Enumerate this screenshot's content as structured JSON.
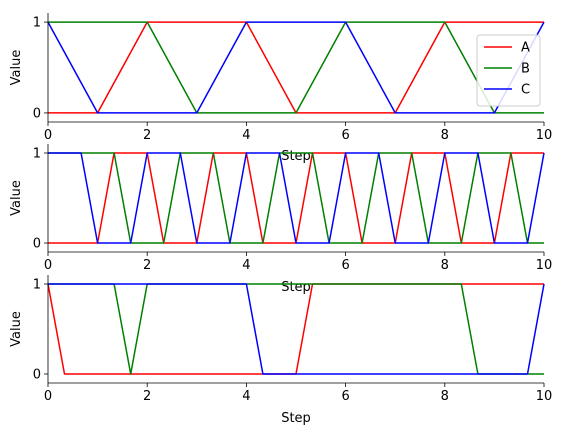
{
  "chart_data": [
    {
      "type": "line",
      "xlabel": "Step",
      "ylabel": "Value",
      "xlim": [
        0,
        10
      ],
      "ylim": [
        -0.1,
        1.1
      ],
      "xticks": [
        0,
        2,
        4,
        6,
        8,
        10
      ],
      "yticks": [
        0,
        1
      ],
      "grid": false,
      "legend": "right",
      "series": [
        {
          "name": "A",
          "color": "#ff0000",
          "x": [
            0,
            1,
            2,
            3,
            4,
            5,
            6,
            7,
            8,
            9,
            10
          ],
          "y": [
            0,
            0,
            1,
            1,
            1,
            0,
            0,
            0,
            1,
            1,
            1
          ]
        },
        {
          "name": "B",
          "color": "#008000",
          "x": [
            0,
            1,
            2,
            3,
            4,
            5,
            6,
            7,
            8,
            9,
            10
          ],
          "y": [
            1,
            1,
            1,
            0,
            0,
            0,
            1,
            1,
            1,
            0,
            0
          ]
        },
        {
          "name": "C",
          "color": "#0000ff",
          "x": [
            0,
            1,
            2,
            3,
            4,
            5,
            6,
            7,
            8,
            9,
            10
          ],
          "y": [
            1,
            0,
            0,
            0,
            1,
            1,
            1,
            0,
            0,
            0,
            1
          ]
        }
      ]
    },
    {
      "type": "line",
      "xlabel": "Step",
      "ylabel": "Value",
      "xlim": [
        0,
        10
      ],
      "ylim": [
        -0.1,
        1.1
      ],
      "xticks": [
        0,
        2,
        4,
        6,
        8,
        10
      ],
      "yticks": [
        0,
        1
      ],
      "grid": false,
      "series": [
        {
          "color": "#ff0000",
          "x": [
            0,
            0.333,
            0.667,
            1,
            1.333,
            1.667,
            2,
            2.333,
            2.667,
            3,
            3.333,
            3.667,
            4,
            4.333,
            4.667,
            5,
            5.333,
            5.667,
            6,
            6.333,
            6.667,
            7,
            7.333,
            7.667,
            8,
            8.333,
            8.667,
            9,
            9.333,
            9.667,
            10
          ],
          "y": [
            0,
            0,
            0,
            0,
            1,
            1,
            1,
            0,
            0,
            0,
            1,
            1,
            1,
            0,
            0,
            0,
            1,
            1,
            1,
            0,
            0,
            0,
            1,
            1,
            1,
            0,
            0,
            0,
            1,
            1,
            1
          ]
        },
        {
          "color": "#008000",
          "x": [
            0,
            0.333,
            0.667,
            1,
            1.333,
            1.667,
            2,
            2.333,
            2.667,
            3,
            3.333,
            3.667,
            4,
            4.333,
            4.667,
            5,
            5.333,
            5.667,
            6,
            6.333,
            6.667,
            7,
            7.333,
            7.667,
            8,
            8.333,
            8.667,
            9,
            9.333,
            9.667,
            10
          ],
          "y": [
            1,
            1,
            1,
            1,
            1,
            0,
            0,
            0,
            1,
            1,
            1,
            0,
            0,
            0,
            1,
            1,
            1,
            0,
            0,
            0,
            1,
            1,
            1,
            0,
            0,
            0,
            1,
            1,
            1,
            0,
            0
          ]
        },
        {
          "color": "#0000ff",
          "x": [
            0,
            0.333,
            0.667,
            1,
            1.333,
            1.667,
            2,
            2.333,
            2.667,
            3,
            3.333,
            3.667,
            4,
            4.333,
            4.667,
            5,
            5.333,
            5.667,
            6,
            6.333,
            6.667,
            7,
            7.333,
            7.667,
            8,
            8.333,
            8.667,
            9,
            9.333,
            9.667,
            10
          ],
          "y": [
            1,
            1,
            1,
            0,
            0,
            0,
            1,
            1,
            1,
            0,
            0,
            0,
            1,
            1,
            1,
            0,
            0,
            0,
            1,
            1,
            1,
            0,
            0,
            0,
            1,
            1,
            1,
            0,
            0,
            0,
            1
          ]
        }
      ]
    },
    {
      "type": "line",
      "xlabel": "Step",
      "ylabel": "Value",
      "xlim": [
        0,
        10
      ],
      "ylim": [
        -0.1,
        1.1
      ],
      "xticks": [
        0,
        2,
        4,
        6,
        8,
        10
      ],
      "yticks": [
        0,
        1
      ],
      "grid": false,
      "series": [
        {
          "color": "#ff0000",
          "x": [
            0,
            0.333,
            0.667,
            1,
            1.333,
            1.667,
            2,
            2.333,
            2.667,
            3,
            3.333,
            3.667,
            4,
            4.333,
            4.667,
            5,
            5.333,
            5.667,
            6,
            6.333,
            6.667,
            7,
            7.333,
            7.667,
            8,
            8.333,
            8.667,
            9,
            9.333,
            9.667,
            10
          ],
          "y": [
            1,
            0,
            0,
            0,
            0,
            0,
            0,
            0,
            0,
            0,
            0,
            0,
            0,
            0,
            0,
            0,
            1,
            1,
            1,
            1,
            1,
            1,
            1,
            1,
            1,
            1,
            1,
            1,
            1,
            1,
            1
          ]
        },
        {
          "color": "#008000",
          "x": [
            0,
            0.333,
            0.667,
            1,
            1.333,
            1.667,
            2,
            2.333,
            2.667,
            3,
            3.333,
            3.667,
            4,
            4.333,
            4.667,
            5,
            5.333,
            5.667,
            6,
            6.333,
            6.667,
            7,
            7.333,
            7.667,
            8,
            8.333,
            8.667,
            9,
            9.333,
            9.667,
            10
          ],
          "y": [
            1,
            1,
            1,
            1,
            1,
            0,
            1,
            1,
            1,
            1,
            1,
            1,
            1,
            1,
            1,
            1,
            1,
            1,
            1,
            1,
            1,
            1,
            1,
            1,
            1,
            1,
            0,
            0,
            0,
            0,
            0
          ]
        },
        {
          "color": "#0000ff",
          "x": [
            0,
            0.333,
            0.667,
            1,
            1.333,
            1.667,
            2,
            2.333,
            2.667,
            3,
            3.333,
            3.667,
            4,
            4.333,
            4.667,
            5,
            5.333,
            5.667,
            6,
            6.333,
            6.667,
            7,
            7.333,
            7.667,
            8,
            8.333,
            8.667,
            9,
            9.333,
            9.667,
            10
          ],
          "y": [
            1,
            1,
            1,
            1,
            1,
            1,
            1,
            1,
            1,
            1,
            1,
            1,
            1,
            0,
            0,
            0,
            0,
            0,
            0,
            0,
            0,
            0,
            0,
            0,
            0,
            0,
            0,
            0,
            0,
            0,
            1
          ]
        }
      ]
    }
  ]
}
